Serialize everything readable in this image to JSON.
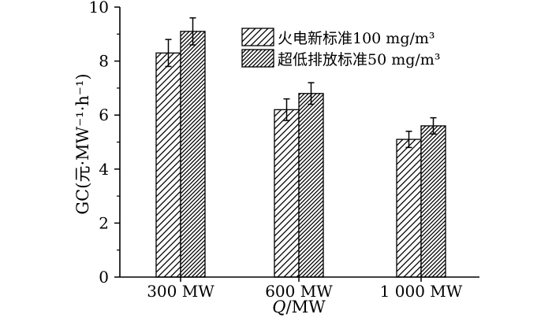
{
  "chart_data": {
    "type": "bar",
    "categories": [
      "300 MW",
      "600 MW",
      "1 000 MW"
    ],
    "series": [
      {
        "name": "火电新标准100 mg/m³",
        "values": [
          8.3,
          6.2,
          5.1
        ],
        "errors": [
          0.5,
          0.4,
          0.3
        ],
        "pattern": "sparse-diagonal-hatch"
      },
      {
        "name": "超低排放标准50 mg/m³",
        "values": [
          9.1,
          6.8,
          5.6
        ],
        "errors": [
          0.5,
          0.4,
          0.3
        ],
        "pattern": "dense-diagonal-hatch"
      }
    ],
    "title": "",
    "xlabel": "Q/MW",
    "ylabel": "GC(元·MW⁻¹·h⁻¹)",
    "ylim": [
      0,
      10
    ],
    "yticks": [
      0,
      2,
      4,
      6,
      8,
      10
    ],
    "grid": false,
    "legend_position": "top-right",
    "bar_color": "#000000",
    "background_color": "#ffffff"
  }
}
